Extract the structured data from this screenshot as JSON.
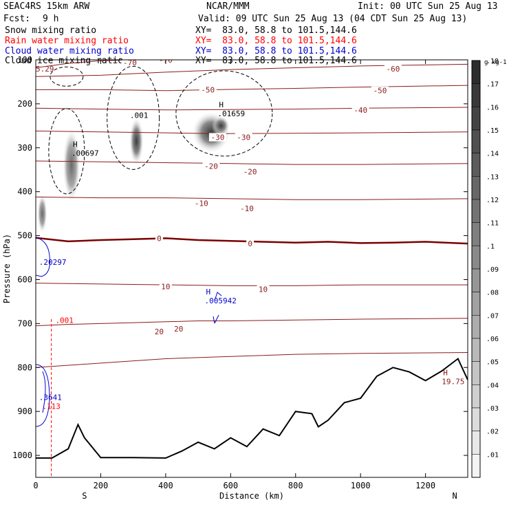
{
  "header": {
    "model": "SEAC4RS 15km ARW",
    "center": "NCAR/MMM",
    "init": "Init: 00 UTC Sun 25 Aug 13",
    "fcst_label": "Fcst:",
    "fcst_value": "9 h",
    "valid": "Valid: 09 UTC Sun 25 Aug 13 (04 CDT Sun 25 Aug 13)",
    "fields": [
      {
        "name": "Snow mixing ratio",
        "xy": "XY=  83.0, 58.8 to 101.5,144.6",
        "color": "#000000"
      },
      {
        "name": "Rain water mixing ratio",
        "xy": "XY=  83.0, 58.8 to 101.5,144.6",
        "color": "#ff0000"
      },
      {
        "name": "Cloud water mixing ratio",
        "xy": "XY=  83.0, 58.8 to 101.5,144.6",
        "color": "#0000cc"
      },
      {
        "name": "Cloud ice mixing ratio",
        "xy": "XY=  83.0, 58.8 to 101.5,144.6",
        "color": "#000000"
      }
    ]
  },
  "chart_data": {
    "type": "contour cross-section",
    "xlabel": "Distance (km)",
    "ylabel": "Pressure (hPa)",
    "xlim": [
      0,
      1330
    ],
    "ylim": [
      1050,
      100
    ],
    "y_log": false,
    "x_ticks": [
      0,
      200,
      400,
      600,
      800,
      1000,
      1200
    ],
    "y_ticks": [
      100,
      200,
      300,
      400,
      500,
      600,
      700,
      800,
      900,
      1000
    ],
    "x_end_labels": [
      "S",
      "N"
    ],
    "colorbar": {
      "unit": "g kg-1",
      "levels": [
        ".01",
        ".02",
        ".03",
        ".04",
        ".05",
        ".06",
        ".07",
        ".08",
        ".09",
        ".1",
        ".11",
        ".12",
        ".13",
        ".14",
        ".15",
        ".16",
        ".17",
        ".18"
      ]
    },
    "isotherm_colors": {
      "line": "#8b1a1a",
      "zero": "#7a0000"
    },
    "isotherms": [
      {
        "label": "-70",
        "temp": -70,
        "points": [
          [
            0,
            118
          ],
          [
            100,
            108
          ],
          [
            200,
            102
          ],
          [
            300,
            100
          ]
        ],
        "labels_at": [
          [
            290,
            106
          ],
          [
            400,
            100
          ]
        ]
      },
      {
        "label": "-60",
        "temp": -60,
        "points": [
          [
            0,
            138
          ],
          [
            200,
            135
          ],
          [
            400,
            128
          ],
          [
            600,
            122
          ],
          [
            800,
            118
          ],
          [
            1000,
            114
          ],
          [
            1330,
            110
          ]
        ],
        "labels_at": [
          [
            1100,
            120
          ]
        ]
      },
      {
        "label": "-50",
        "temp": -50,
        "points": [
          [
            0,
            168
          ],
          [
            200,
            168
          ],
          [
            400,
            170
          ],
          [
            550,
            168
          ],
          [
            800,
            165
          ],
          [
            1000,
            162
          ],
          [
            1330,
            158
          ]
        ],
        "labels_at": [
          [
            530,
            168
          ],
          [
            1060,
            170
          ]
        ]
      },
      {
        "label": "-40",
        "temp": -40,
        "points": [
          [
            0,
            210
          ],
          [
            200,
            212
          ],
          [
            400,
            214
          ],
          [
            600,
            213
          ],
          [
            800,
            212
          ],
          [
            1000,
            210
          ],
          [
            1330,
            208
          ]
        ],
        "labels_at": [
          [
            1000,
            214
          ]
        ]
      },
      {
        "label": "-30",
        "temp": -30,
        "points": [
          [
            0,
            262
          ],
          [
            200,
            264
          ],
          [
            400,
            266
          ],
          [
            550,
            268
          ],
          [
            800,
            267
          ],
          [
            1000,
            266
          ],
          [
            1330,
            264
          ]
        ],
        "labels_at": [
          [
            560,
            276
          ],
          [
            640,
            276
          ]
        ]
      },
      {
        "label": "-20",
        "temp": -20,
        "points": [
          [
            0,
            330
          ],
          [
            200,
            332
          ],
          [
            400,
            334
          ],
          [
            600,
            336
          ],
          [
            800,
            338
          ],
          [
            1000,
            338
          ],
          [
            1330,
            336
          ]
        ],
        "labels_at": [
          [
            540,
            342
          ],
          [
            660,
            354
          ]
        ]
      },
      {
        "label": "-10",
        "temp": -10,
        "points": [
          [
            0,
            412
          ],
          [
            200,
            414
          ],
          [
            400,
            414
          ],
          [
            600,
            416
          ],
          [
            800,
            418
          ],
          [
            1000,
            418
          ],
          [
            1330,
            416
          ]
        ],
        "labels_at": [
          [
            510,
            426
          ],
          [
            650,
            438
          ]
        ]
      },
      {
        "label": "0",
        "temp": 0,
        "points": [
          [
            0,
            505
          ],
          [
            100,
            513
          ],
          [
            200,
            510
          ],
          [
            300,
            508
          ],
          [
            400,
            506
          ],
          [
            500,
            510
          ],
          [
            600,
            512
          ],
          [
            700,
            514
          ],
          [
            800,
            516
          ],
          [
            900,
            514
          ],
          [
            1000,
            517
          ],
          [
            1100,
            516
          ],
          [
            1200,
            514
          ],
          [
            1330,
            518
          ]
        ],
        "labels_at": [
          [
            380,
            506
          ],
          [
            660,
            518
          ]
        ]
      },
      {
        "label": "10",
        "temp": 10,
        "points": [
          [
            0,
            608
          ],
          [
            200,
            610
          ],
          [
            400,
            612
          ],
          [
            600,
            614
          ],
          [
            800,
            614
          ],
          [
            1000,
            612
          ],
          [
            1330,
            612
          ]
        ],
        "labels_at": [
          [
            400,
            616
          ],
          [
            700,
            622
          ]
        ]
      },
      {
        "label": "20",
        "temp": 20,
        "points": [
          [
            0,
            705
          ],
          [
            100,
            702
          ],
          [
            200,
            700
          ],
          [
            300,
            698
          ],
          [
            400,
            696
          ],
          [
            500,
            694
          ],
          [
            600,
            694
          ],
          [
            800,
            692
          ],
          [
            1000,
            690
          ],
          [
            1330,
            688
          ]
        ],
        "labels_at": [
          [
            380,
            718
          ],
          [
            440,
            712
          ]
        ]
      },
      {
        "label": "",
        "temp": 30,
        "points": [
          [
            0,
            800
          ],
          [
            200,
            790
          ],
          [
            400,
            780
          ],
          [
            600,
            775
          ],
          [
            800,
            770
          ],
          [
            1000,
            768
          ],
          [
            1330,
            766
          ]
        ],
        "labels_at": []
      }
    ],
    "annotations": [
      {
        "kind": "snow-max",
        "text": "H",
        "value": ".00697",
        "x": 110,
        "p": 312
      },
      {
        "kind": "ice-min",
        "text": "",
        "value": ".001",
        "x": 290,
        "p": 226
      },
      {
        "kind": "ice-max",
        "text": "H",
        "value": ".01659",
        "x": 560,
        "p": 222
      },
      {
        "kind": "cloudwater-max",
        "text": "H",
        "value": ".005942",
        "x": 520,
        "p": 648
      },
      {
        "kind": "cloudwater-edge",
        "text": "",
        "value": ".20297",
        "x": 10,
        "p": 560
      },
      {
        "kind": "rain-edge",
        "text": "",
        "value": ".001",
        "x": 60,
        "p": 692
      },
      {
        "kind": "cloudwater-edge2",
        "text": "",
        "value": ".3641",
        "x": 10,
        "p": 868
      },
      {
        "kind": "rain-edge2",
        "text": "",
        "value": ".113",
        "x": 20,
        "p": 888
      },
      {
        "kind": "topo-max",
        "text": "H",
        "value": "19.75",
        "x": 1250,
        "p": 832
      },
      {
        "kind": "top-left",
        "text": "",
        "value": "5.29",
        "x": 0,
        "p": 120
      }
    ],
    "terrain_pressure": [
      [
        0,
        1006
      ],
      [
        50,
        1006
      ],
      [
        100,
        985
      ],
      [
        130,
        930
      ],
      [
        150,
        960
      ],
      [
        200,
        1005
      ],
      [
        300,
        1005
      ],
      [
        400,
        1006
      ],
      [
        450,
        990
      ],
      [
        500,
        970
      ],
      [
        550,
        985
      ],
      [
        600,
        960
      ],
      [
        650,
        980
      ],
      [
        700,
        940
      ],
      [
        750,
        955
      ],
      [
        800,
        900
      ],
      [
        850,
        905
      ],
      [
        870,
        935
      ],
      [
        900,
        920
      ],
      [
        950,
        880
      ],
      [
        1000,
        870
      ],
      [
        1050,
        820
      ],
      [
        1100,
        800
      ],
      [
        1150,
        810
      ],
      [
        1200,
        830
      ],
      [
        1250,
        808
      ],
      [
        1300,
        780
      ],
      [
        1330,
        828
      ]
    ],
    "rain_column_x": 48,
    "rain_column_p": [
      690,
      1050
    ]
  }
}
